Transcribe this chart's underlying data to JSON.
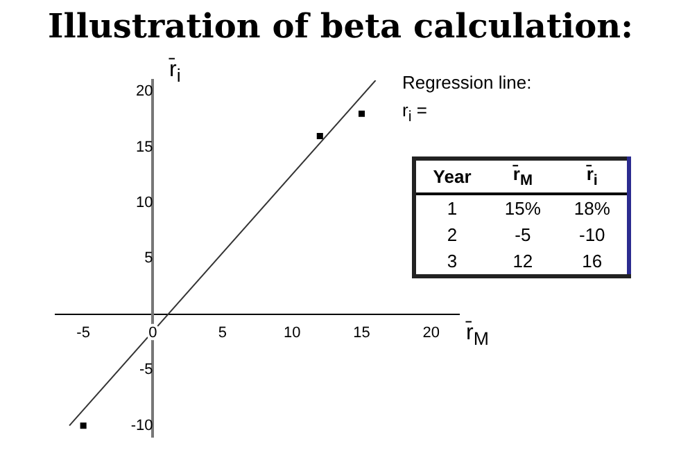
{
  "chart_data": {
    "type": "scatter",
    "title": "Illustration of beta calculation:",
    "xlabel": "r̄$_{M}$",
    "ylabel": "r̄$_{i}$",
    "series": [
      {
        "type": "scatter",
        "color": "#000000",
        "x": [
          15,
          -5,
          12
        ],
        "values": [
          18,
          -10,
          16
        ],
        "marker": "square"
      },
      {
        "type": "line",
        "color": "#333333",
        "x": [
          -6,
          16
        ],
        "values": [
          -10,
          21
        ],
        "marker": "none",
        "line_style": "solid"
      }
    ],
    "xlim": [
      -7,
      22
    ],
    "ylim": [
      -11,
      21
    ],
    "xticks": [
      -5,
      0,
      5,
      10,
      15,
      20
    ],
    "yticks": [
      -10,
      -5,
      5,
      10,
      15,
      20
    ],
    "legend": false,
    "annotations": [
      "Regression line:",
      "r$_{i}$ =",
      "Year",
      "r̄$_{M}$",
      "r̄$_{i}$",
      "1",
      "15%",
      "18%",
      "2",
      "-5",
      "-10",
      "3",
      "12",
      "16"
    ]
  }
}
